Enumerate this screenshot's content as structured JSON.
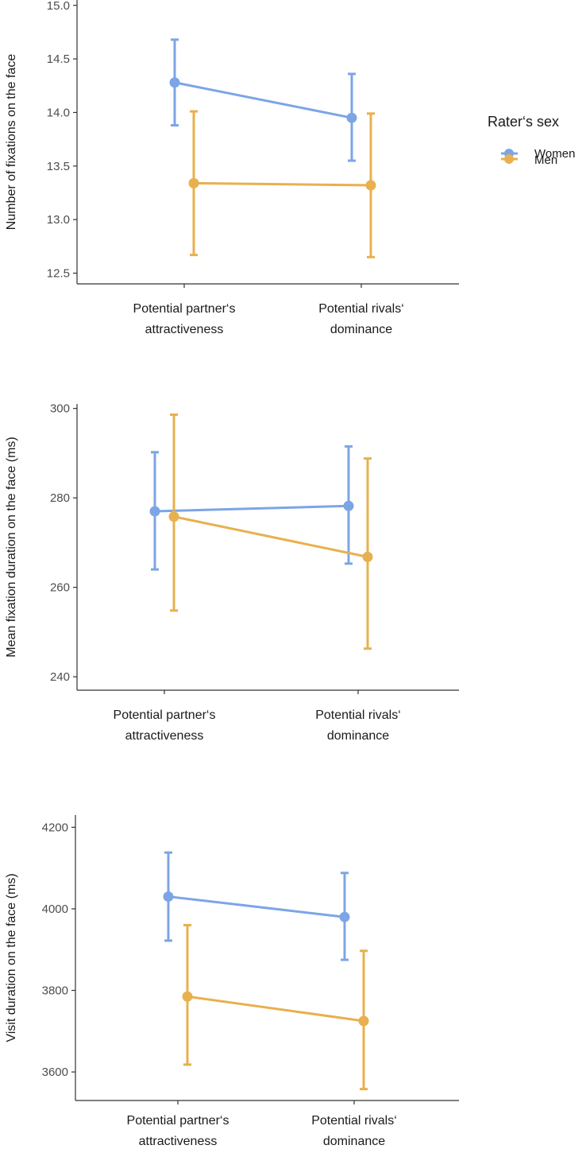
{
  "legend": {
    "title": "Rater‘s sex",
    "entries": [
      {
        "name": "Women",
        "color": "#7CA5E6"
      },
      {
        "name": "Men",
        "color": "#E8B04E"
      }
    ]
  },
  "chart_data": [
    {
      "type": "line",
      "ylabel": "Number of fixations on the face",
      "categories": [
        [
          "Potential partner‘s",
          "attractiveness"
        ],
        [
          "Potential rivals‘",
          "dominance"
        ]
      ],
      "ylim": [
        12.4,
        15.05
      ],
      "yticks": [
        "12.5",
        "13.0",
        "13.5",
        "14.0",
        "14.5",
        "15.0"
      ],
      "series": [
        {
          "name": "Women",
          "values": [
            14.28,
            13.95
          ],
          "lower": [
            13.88,
            13.55
          ],
          "upper": [
            14.68,
            14.36
          ]
        },
        {
          "name": "Men",
          "values": [
            13.34,
            13.32
          ],
          "lower": [
            12.67,
            12.65
          ],
          "upper": [
            14.01,
            13.99
          ]
        }
      ]
    },
    {
      "type": "line",
      "ylabel": "Mean fixation duration on the face (ms)",
      "categories": [
        [
          "Potential partner‘s",
          "attractiveness"
        ],
        [
          "Potential rivals‘",
          "dominance"
        ]
      ],
      "ylim": [
        237,
        301
      ],
      "yticks": [
        "240",
        "260",
        "280",
        "300"
      ],
      "series": [
        {
          "name": "Women",
          "values": [
            277,
            278.2
          ],
          "lower": [
            264,
            265.3
          ],
          "upper": [
            290.2,
            291.5
          ]
        },
        {
          "name": "Men",
          "values": [
            275.8,
            266.8
          ],
          "lower": [
            254.8,
            246.3
          ],
          "upper": [
            298.6,
            288.8
          ]
        }
      ]
    },
    {
      "type": "line",
      "ylabel": "Visit duration on the face (ms)",
      "categories": [
        [
          "Potential partner‘s",
          "attractiveness"
        ],
        [
          "Potential rivals‘",
          "dominance"
        ]
      ],
      "ylim": [
        3530,
        4230
      ],
      "yticks": [
        "3600",
        "3800",
        "4000",
        "4200"
      ],
      "series": [
        {
          "name": "Women",
          "values": [
            4030,
            3980
          ],
          "lower": [
            3922,
            3875
          ],
          "upper": [
            4138,
            4088
          ]
        },
        {
          "name": "Men",
          "values": [
            3785,
            3725
          ],
          "lower": [
            3618,
            3558
          ],
          "upper": [
            3960,
            3897
          ]
        }
      ]
    }
  ]
}
